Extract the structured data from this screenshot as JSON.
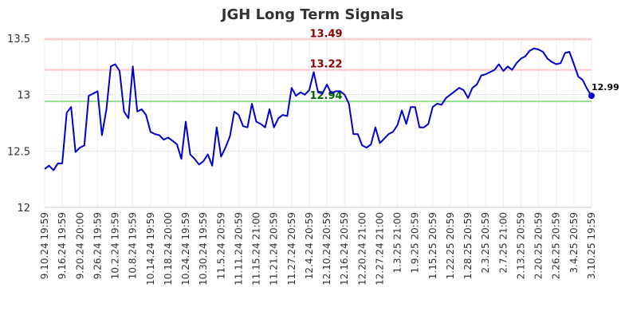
{
  "chart_data": {
    "type": "line",
    "title": "JGH Long Term Signals",
    "xlabel": "",
    "ylabel": "",
    "ylim": [
      12,
      13.5
    ],
    "y_ticks": [
      "12",
      "12.5",
      "13",
      "13.5"
    ],
    "x_tick_labels": [
      "9.10.24 19:59",
      "9.16.24 19:59",
      "9.20.24 20:00",
      "9.26.24 19:59",
      "10.2.24 19:59",
      "10.8.24 19:59",
      "10.14.24 19:59",
      "10.18.24 20:00",
      "10.24.24 19:59",
      "10.30.24 19:59",
      "11.5.24 20:59",
      "11.11.24 20:59",
      "11.15.24 21:00",
      "11.21.24 20:59",
      "11.27.24 20:59",
      "12.4.24 20:59",
      "12.10.24 20:59",
      "12.16.24 20:59",
      "12.20.24 21:00",
      "12.27.24 21:00",
      "1.3.25 21:00",
      "1.9.25 20:59",
      "1.15.25 20:59",
      "1.22.25 20:59",
      "1.28.25 20:59",
      "2.3.25 20:59",
      "2.7.25 21:00",
      "2.13.25 20:59",
      "2.20.25 20:59",
      "2.26.25 20:59",
      "3.4.25 20:59",
      "3.10.25 19:59"
    ],
    "grid": true,
    "series": [
      {
        "color": "#0000cc",
        "values": [
          12.34,
          12.37,
          12.33,
          12.39,
          12.39,
          12.84,
          12.89,
          12.49,
          12.53,
          12.55,
          12.99,
          13.01,
          13.03,
          12.64,
          12.87,
          13.25,
          13.27,
          13.21,
          12.85,
          12.79,
          13.25,
          12.85,
          12.87,
          12.82,
          12.67,
          12.65,
          12.64,
          12.6,
          12.62,
          12.59,
          12.56,
          12.43,
          12.76,
          12.47,
          12.43,
          12.38,
          12.41,
          12.47,
          12.37,
          12.71,
          12.45,
          12.53,
          12.63,
          12.85,
          12.82,
          12.72,
          12.71,
          12.92,
          12.76,
          12.74,
          12.71,
          12.87,
          12.71,
          12.79,
          12.82,
          12.81,
          13.06,
          12.99,
          13.02,
          13.0,
          13.04,
          13.2,
          13.02,
          13.01,
          13.09,
          13.01,
          13.03,
          13.03,
          13.0,
          12.92,
          12.65,
          12.65,
          12.55,
          12.53,
          12.56,
          12.71,
          12.57,
          12.61,
          12.65,
          12.67,
          12.73,
          12.86,
          12.74,
          12.89,
          12.89,
          12.71,
          12.71,
          12.74,
          12.89,
          12.92,
          12.91,
          12.97,
          13.0,
          13.03,
          13.06,
          13.04,
          12.97,
          13.06,
          13.09,
          13.17,
          13.18,
          13.2,
          13.22,
          13.27,
          13.21,
          13.25,
          13.22,
          13.28,
          13.32,
          13.34,
          13.39,
          13.41,
          13.4,
          13.38,
          13.32,
          13.29,
          13.27,
          13.28,
          13.37,
          13.38,
          13.27,
          13.16,
          13.13,
          13.05,
          12.99
        ]
      }
    ],
    "reference_lines": [
      {
        "value": 13.49,
        "label": "13.49",
        "line_color": "#ffc8c8",
        "label_color": "#8b0000"
      },
      {
        "value": 13.22,
        "label": "13.22",
        "line_color": "#ffc8c8",
        "label_color": "#8b0000"
      },
      {
        "value": 12.94,
        "label": "12.94",
        "line_color": "#90e090",
        "label_color": "#006400"
      }
    ],
    "last_point_label": "12.99"
  }
}
